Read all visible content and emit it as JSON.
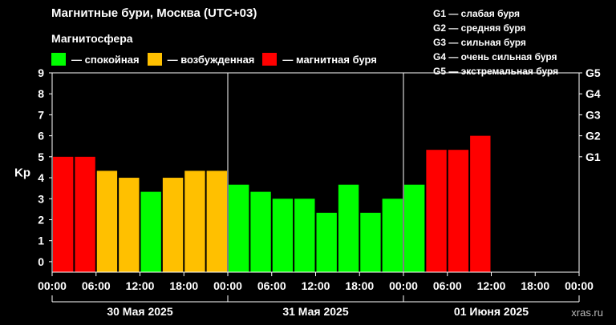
{
  "header": {
    "title": "Магнитные бури, Москва (UTC+03)",
    "subtitle": "Магнитосфера"
  },
  "legend": {
    "calm": {
      "label": "— спокойная",
      "color": "#00ff00"
    },
    "excited": {
      "label": "— возбужденная",
      "color": "#ffc000"
    },
    "storm": {
      "label": "— магнитная буря",
      "color": "#ff0000"
    }
  },
  "g_legend": [
    "G1 — слабая буря",
    "G2 — средняя буря",
    "G3 — сильная буря",
    "G4 — очень сильная буря",
    "G5 — экстремальная буря"
  ],
  "watermark": "xras.ru",
  "chart_data": {
    "type": "bar",
    "ylabel": "Kp",
    "ylim": [
      0,
      9
    ],
    "yticks": [
      "0",
      "1",
      "2",
      "3",
      "4",
      "5",
      "6",
      "7",
      "8",
      "9"
    ],
    "g_ticks": [
      {
        "label": "G1",
        "kp": 5
      },
      {
        "label": "G2",
        "kp": 6
      },
      {
        "label": "G3",
        "kp": 7
      },
      {
        "label": "G4",
        "kp": 8
      },
      {
        "label": "G5",
        "kp": 9
      }
    ],
    "xticks": [
      "00:00",
      "06:00",
      "12:00",
      "18:00",
      "00:00",
      "06:00",
      "12:00",
      "18:00",
      "00:00",
      "06:00",
      "12:00",
      "18:00",
      "00:00"
    ],
    "days": [
      "30 Мая 2025",
      "31 Мая 2025",
      "01 Июня 2025"
    ],
    "slots_per_day": 8,
    "values": [
      5.0,
      5.0,
      4.33,
      4.0,
      3.33,
      4.0,
      4.33,
      4.33,
      3.67,
      3.33,
      3.0,
      3.0,
      2.33,
      3.67,
      2.33,
      3.0,
      3.67,
      5.33,
      5.33,
      6.0
    ],
    "levels": [
      "storm",
      "storm",
      "excited",
      "excited",
      "calm",
      "excited",
      "excited",
      "excited",
      "calm",
      "calm",
      "calm",
      "calm",
      "calm",
      "calm",
      "calm",
      "calm",
      "calm",
      "storm",
      "storm",
      "storm"
    ],
    "grid": false,
    "day_separators": true
  }
}
